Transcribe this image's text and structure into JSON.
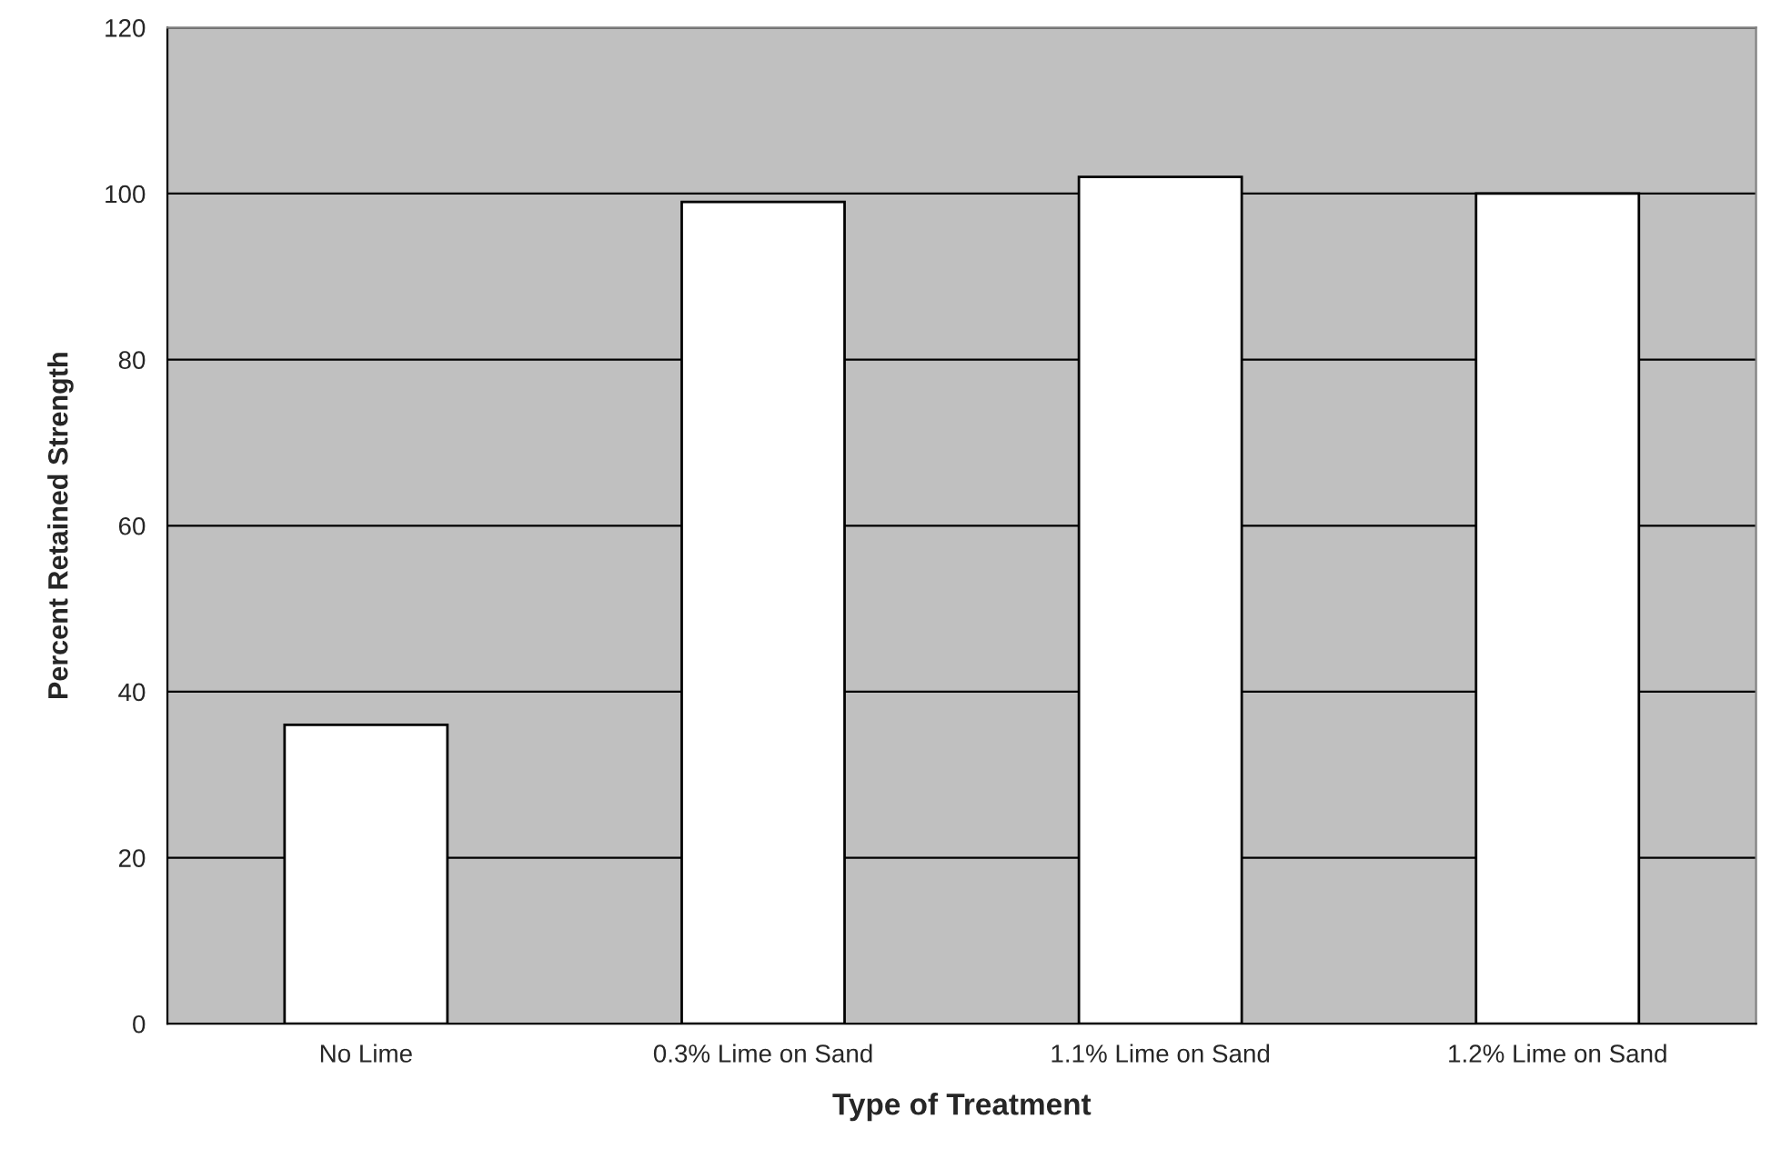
{
  "chart_data": {
    "type": "bar",
    "xlabel": "Type of Treatment",
    "ylabel": "Percent Retained Strength",
    "categories": [
      "No Lime",
      "0.3% Lime on Sand",
      "1.1% Lime on Sand",
      "1.2% Lime on Sand"
    ],
    "values": [
      36,
      99,
      102,
      100
    ],
    "color": "#ffffff",
    "ylim": [
      0,
      120
    ],
    "yticks": [
      0,
      20,
      40,
      60,
      80,
      100,
      120
    ],
    "grid": "y"
  }
}
